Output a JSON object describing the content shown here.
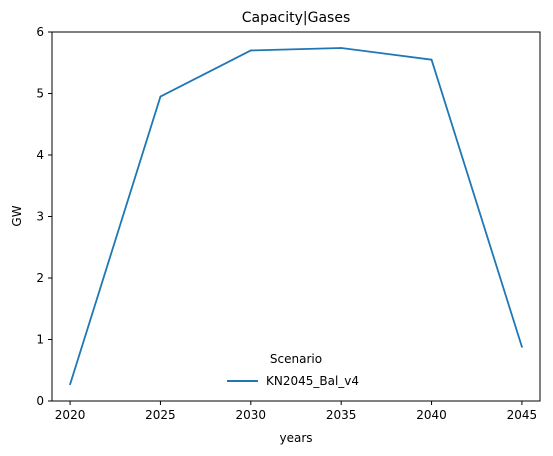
{
  "chart_data": {
    "type": "line",
    "title": "Capacity|Gases",
    "xlabel": "years",
    "ylabel": "GW",
    "x": [
      2020,
      2025,
      2030,
      2035,
      2040,
      2045
    ],
    "xlim": [
      2019,
      2046
    ],
    "ylim": [
      0,
      6
    ],
    "xticks": [
      2020,
      2025,
      2030,
      2035,
      2040,
      2045
    ],
    "yticks": [
      0,
      1,
      2,
      3,
      4,
      5,
      6
    ],
    "grid": false,
    "legend": {
      "title": "Scenario",
      "placement": "lower-center"
    },
    "series": [
      {
        "name": "KN2045_Bal_v4",
        "color": "#1f77b4",
        "values": [
          0.27,
          4.95,
          5.7,
          5.74,
          5.55,
          0.88
        ]
      }
    ]
  }
}
